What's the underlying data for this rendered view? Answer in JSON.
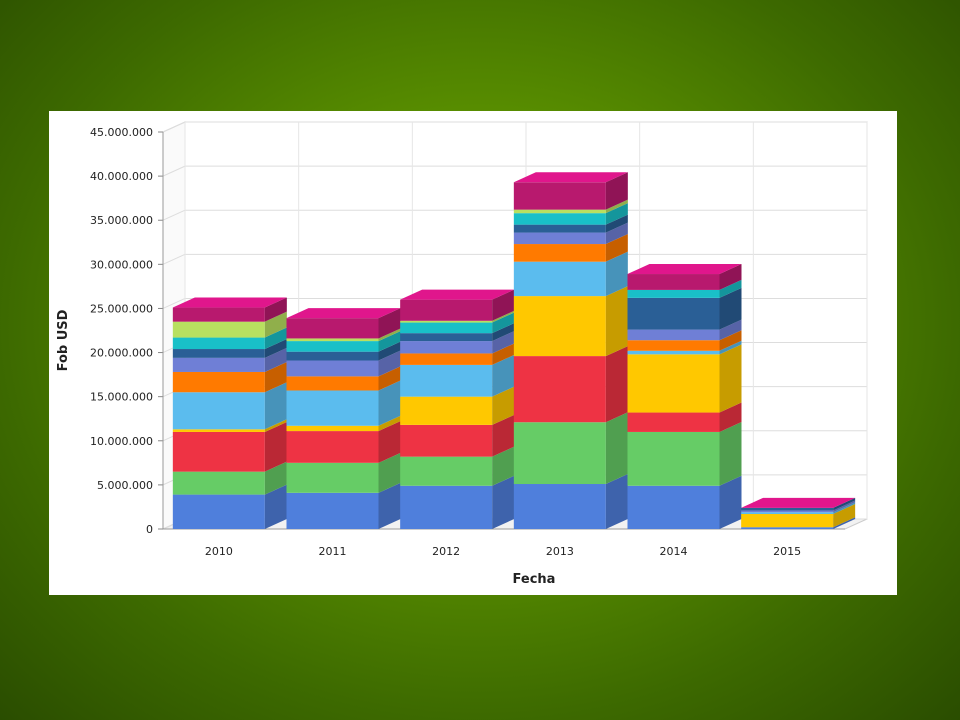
{
  "chart_data": {
    "type": "bar",
    "stacked": true,
    "three_d": true,
    "categories": [
      "2010",
      "2011",
      "2012",
      "2013",
      "2014",
      "2015"
    ],
    "xlabel": "Fecha",
    "ylabel": "Fob USD",
    "ylim": [
      0,
      45000000
    ],
    "yticks": [
      0,
      5000000,
      10000000,
      15000000,
      20000000,
      25000000,
      30000000,
      35000000,
      40000000,
      45000000
    ],
    "ytick_labels": [
      "0",
      "5.000.000",
      "10.000.000",
      "15.000.000",
      "20.000.000",
      "25.000.000",
      "30.000.000",
      "35.000.000",
      "40.000.000",
      "45.000.000"
    ],
    "grid": true,
    "legend": "none",
    "series": [
      {
        "color": "#4f7fdc",
        "values": [
          3900000,
          4100000,
          4900000,
          5100000,
          4900000,
          200000
        ]
      },
      {
        "color": "#66cc66",
        "values": [
          2600000,
          3400000,
          3300000,
          7000000,
          6100000,
          0
        ]
      },
      {
        "color": "#ee3344",
        "values": [
          4500000,
          3600000,
          3600000,
          7500000,
          2200000,
          0
        ]
      },
      {
        "color": "#ffc800",
        "values": [
          300000,
          600000,
          3200000,
          6800000,
          6600000,
          1500000
        ]
      },
      {
        "color": "#5bbcee",
        "values": [
          4200000,
          4000000,
          3600000,
          3900000,
          400000,
          200000
        ]
      },
      {
        "color": "#ff7a00",
        "values": [
          2300000,
          1600000,
          1300000,
          2000000,
          1200000,
          0
        ]
      },
      {
        "color": "#6f7fd6",
        "values": [
          1600000,
          1800000,
          1400000,
          1300000,
          1200000,
          200000
        ]
      },
      {
        "color": "#2a5f96",
        "values": [
          1000000,
          1000000,
          900000,
          900000,
          3600000,
          300000
        ]
      },
      {
        "color": "#19c0c8",
        "values": [
          1300000,
          1200000,
          1200000,
          1300000,
          900000,
          0
        ]
      },
      {
        "color": "#b8e060",
        "values": [
          1800000,
          300000,
          200000,
          400000,
          0,
          0
        ]
      },
      {
        "color": "#b8196e",
        "values": [
          1600000,
          2300000,
          2400000,
          3100000,
          1800000,
          0
        ]
      }
    ]
  },
  "colors": {
    "top_face": "#e0168c",
    "panel_background": "#ffffff",
    "grid": "#dddddd"
  }
}
